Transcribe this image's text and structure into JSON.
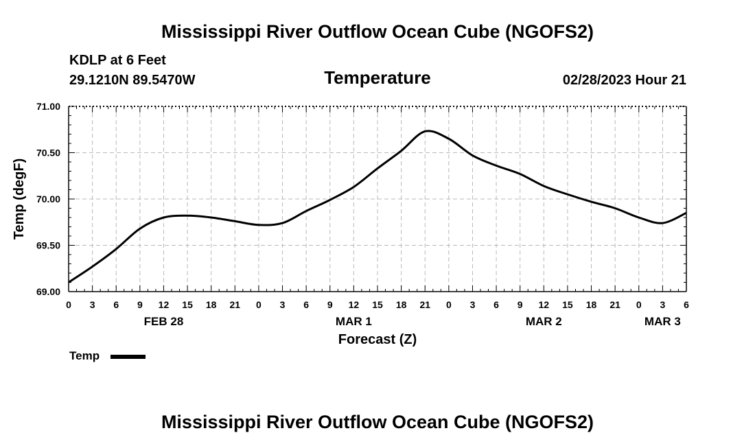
{
  "page": {
    "title_top": "Mississippi River Outflow Ocean Cube (NGOFS2)",
    "title_bottom": "Mississippi River Outflow Ocean Cube (NGOFS2)",
    "station": "KDLP at 6 Feet",
    "coordinates": "29.1210N  89.5470W",
    "datetime": "02/28/2023 Hour 21"
  },
  "legend": {
    "label": "Temp"
  },
  "chart_data": {
    "type": "line",
    "title": "Temperature",
    "xlabel": "Forecast (Z)",
    "ylabel": "Temp (degF)",
    "xlim": [
      0,
      78
    ],
    "ylim": [
      69.0,
      71.0
    ],
    "grid": true,
    "yticks": [
      "69.00",
      "69.50",
      "70.00",
      "70.50",
      "71.00"
    ],
    "ytick_values": [
      69.0,
      69.5,
      70.0,
      70.5,
      71.0
    ],
    "xtick_labels": [
      "0",
      "3",
      "6",
      "9",
      "12",
      "15",
      "18",
      "21",
      "0",
      "3",
      "6",
      "9",
      "12",
      "15",
      "18",
      "21",
      "0",
      "3",
      "6",
      "9",
      "12",
      "15",
      "18",
      "21",
      "0",
      "3",
      "6"
    ],
    "date_labels": [
      {
        "text": "FEB 28",
        "hour": 12
      },
      {
        "text": "MAR 1",
        "hour": 36
      },
      {
        "text": "MAR 2",
        "hour": 60
      },
      {
        "text": "MAR 3",
        "hour": 75
      }
    ],
    "series": [
      {
        "name": "Temp",
        "color": "#000000",
        "x": [
          0,
          3,
          6,
          9,
          12,
          15,
          18,
          21,
          24,
          27,
          30,
          33,
          36,
          39,
          42,
          45,
          48,
          51,
          54,
          57,
          60,
          63,
          66,
          69,
          72,
          75,
          78
        ],
        "values": [
          69.1,
          69.27,
          69.46,
          69.68,
          69.8,
          69.82,
          69.8,
          69.76,
          69.72,
          69.74,
          69.87,
          69.99,
          70.13,
          70.33,
          70.52,
          70.73,
          70.65,
          70.47,
          70.36,
          70.27,
          70.14,
          70.05,
          69.97,
          69.9,
          69.8,
          69.74,
          69.85
        ]
      }
    ]
  }
}
